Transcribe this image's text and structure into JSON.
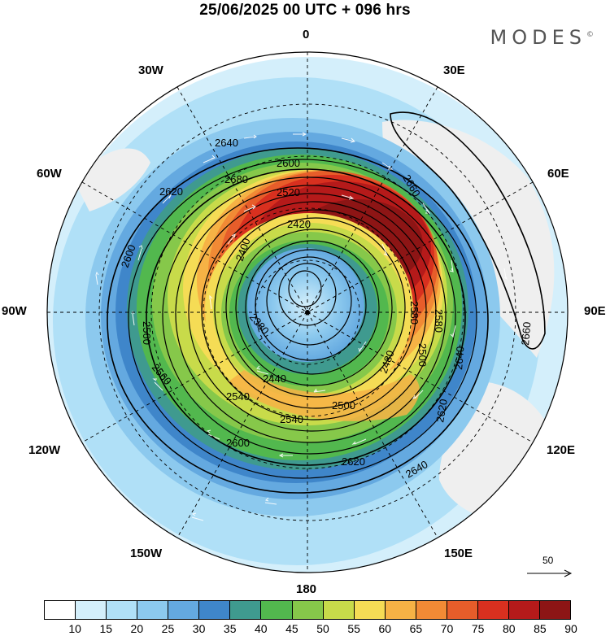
{
  "title": "25/06/2025  00 UTC  + 096 hrs",
  "brand": "MODES",
  "brand_mark": "©",
  "longitude_labels": {
    "top": "0",
    "top_right": "30E",
    "right_upper": "60E",
    "right": "90E",
    "right_lower": "120E",
    "bottom_right": "150E",
    "bottom": "180",
    "bottom_left": "150W",
    "left_lower": "120W",
    "left": "90W",
    "left_upper": "60W",
    "top_left": "30W"
  },
  "contour_labels": [
    "2640",
    "2600",
    "2660",
    "2620",
    "2580",
    "2560",
    "2520",
    "2600",
    "2680",
    "2420",
    "2400",
    "2440",
    "2480",
    "2380",
    "2540",
    "2500",
    "2580",
    "2500",
    "2620",
    "2640",
    "2660",
    "2620",
    "2600",
    "2560",
    "2540",
    "2640"
  ],
  "wind_scale": {
    "value": "50"
  },
  "colorbar": {
    "ticks": [
      "10",
      "15",
      "20",
      "25",
      "30",
      "35",
      "40",
      "45",
      "50",
      "55",
      "60",
      "65",
      "70",
      "75",
      "80",
      "85",
      "90"
    ],
    "colors": [
      "#ffffff",
      "#d4effb",
      "#b0e0f7",
      "#8cc9ee",
      "#64a9e0",
      "#3f86ca",
      "#3f9a8f",
      "#52b84e",
      "#86c84a",
      "#c8db4a",
      "#f5dc55",
      "#f6b245",
      "#f18a35",
      "#e75d2a",
      "#d8301f",
      "#b51a1a",
      "#8d1515"
    ]
  }
}
